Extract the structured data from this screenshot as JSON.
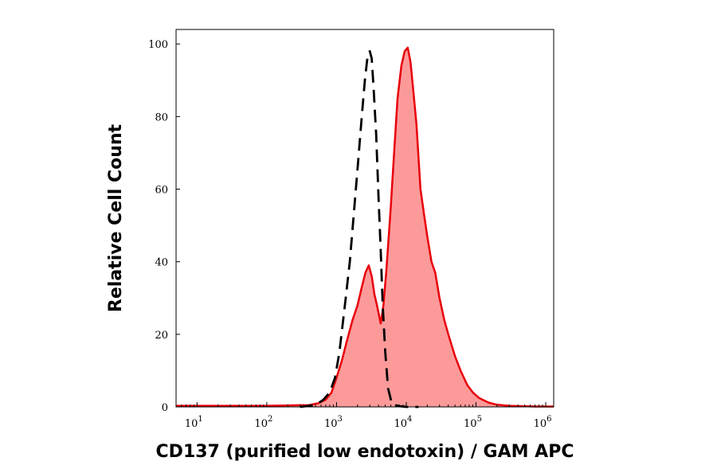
{
  "chart_data": {
    "type": "area",
    "title": "",
    "xlabel": "CD137 (purified low endotoxin) / GAM APC",
    "ylabel": "Relative Cell Count",
    "x_scale": "log",
    "xlim": [
      5,
      1300000
    ],
    "ylim": [
      0,
      104
    ],
    "x_ticks": [
      {
        "value": 10,
        "base": "10",
        "exp": "1"
      },
      {
        "value": 100,
        "base": "10",
        "exp": "2"
      },
      {
        "value": 1000,
        "base": "10",
        "exp": "3"
      },
      {
        "value": 10000,
        "base": "10",
        "exp": "4"
      },
      {
        "value": 100000,
        "base": "10",
        "exp": "5"
      },
      {
        "value": 1000000,
        "base": "10",
        "exp": "6"
      }
    ],
    "y_ticks": [
      "0",
      "20",
      "40",
      "60",
      "80",
      "100"
    ],
    "grid": false,
    "legend": "none",
    "series": [
      {
        "style": "filled",
        "color": "#e8000b",
        "fill": "#fc9a9a",
        "x": [
          5,
          100,
          400,
          550,
          700,
          850,
          1000,
          1200,
          1400,
          1700,
          2000,
          2300,
          2600,
          2900,
          3200,
          3500,
          3800,
          4300,
          4700,
          5200,
          6000,
          6700,
          7500,
          8500,
          9500,
          10500,
          11500,
          12500,
          14000,
          16000,
          18000,
          20000,
          23000,
          26000,
          30000,
          35000,
          40000,
          50000,
          60000,
          75000,
          90000,
          110000,
          150000,
          200000,
          300000,
          500000,
          700000,
          1000000,
          1300000
        ],
        "y": [
          0.3,
          0.3,
          0.5,
          1,
          2,
          4,
          8,
          13,
          18,
          24,
          28,
          33,
          37,
          39,
          36,
          31,
          28,
          23,
          28,
          38,
          55,
          70,
          85,
          94,
          98,
          99,
          95,
          88,
          78,
          60,
          53,
          47,
          40,
          37,
          30,
          24,
          20,
          14,
          10,
          6,
          4,
          2.5,
          1.2,
          0.6,
          0.3,
          0.2,
          0.1,
          0.1,
          0.1
        ]
      },
      {
        "style": "dashed",
        "color": "#000000",
        "x": [
          300,
          500,
          650,
          800,
          950,
          1100,
          1300,
          1550,
          1800,
          2050,
          2300,
          2550,
          2800,
          3000,
          3200,
          3400,
          3700,
          4000,
          4300,
          4600,
          5000,
          5500,
          6200,
          7000,
          8000,
          10000,
          15000
        ],
        "y": [
          0,
          0.5,
          2,
          4,
          8,
          15,
          27,
          40,
          55,
          68,
          80,
          90,
          97,
          98,
          96,
          88,
          75,
          58,
          43,
          28,
          15,
          5,
          1,
          0.5,
          0.2,
          0,
          0
        ]
      }
    ]
  }
}
